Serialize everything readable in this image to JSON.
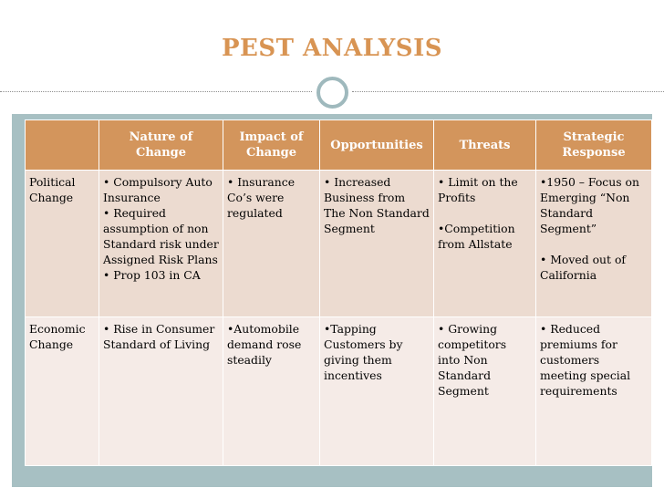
{
  "title": "PEST ANALYSIS",
  "colors": {
    "title": "#d89453",
    "header_bg": "#d3955c",
    "row1_bg": "#ecdbd0",
    "row2_bg": "#f5ebe7",
    "frame": "#a7c0c3"
  },
  "table": {
    "headers": [
      "",
      "Nature of Change",
      "Impact of Change",
      "Opportunities",
      "Threats",
      "Strategic Response"
    ],
    "rows": [
      {
        "label": "Political Change",
        "nature": [
          "• Compulsory Auto Insurance",
          "• Required assumption of non Standard risk under Assigned Risk Plans",
          "• Prop 103 in CA"
        ],
        "impact": [
          "• Insurance Co’s were regulated"
        ],
        "opportunities": [
          "• Increased Business from The Non Standard Segment"
        ],
        "threats": [
          "• Limit on the Profits",
          "•Competition from Allstate"
        ],
        "response": [
          "•1950 – Focus on Emerging “Non Standard Segment”",
          "• Moved out of California"
        ]
      },
      {
        "label": "Economic Change",
        "nature": [
          "• Rise in Consumer Standard of Living"
        ],
        "impact": [
          "•Automobile demand rose steadily"
        ],
        "opportunities": [
          "•Tapping Customers by giving them incentives"
        ],
        "threats": [
          "• Growing competitors into Non Standard Segment"
        ],
        "response": [
          "• Reduced premiums for customers meeting special requirements"
        ]
      }
    ]
  }
}
